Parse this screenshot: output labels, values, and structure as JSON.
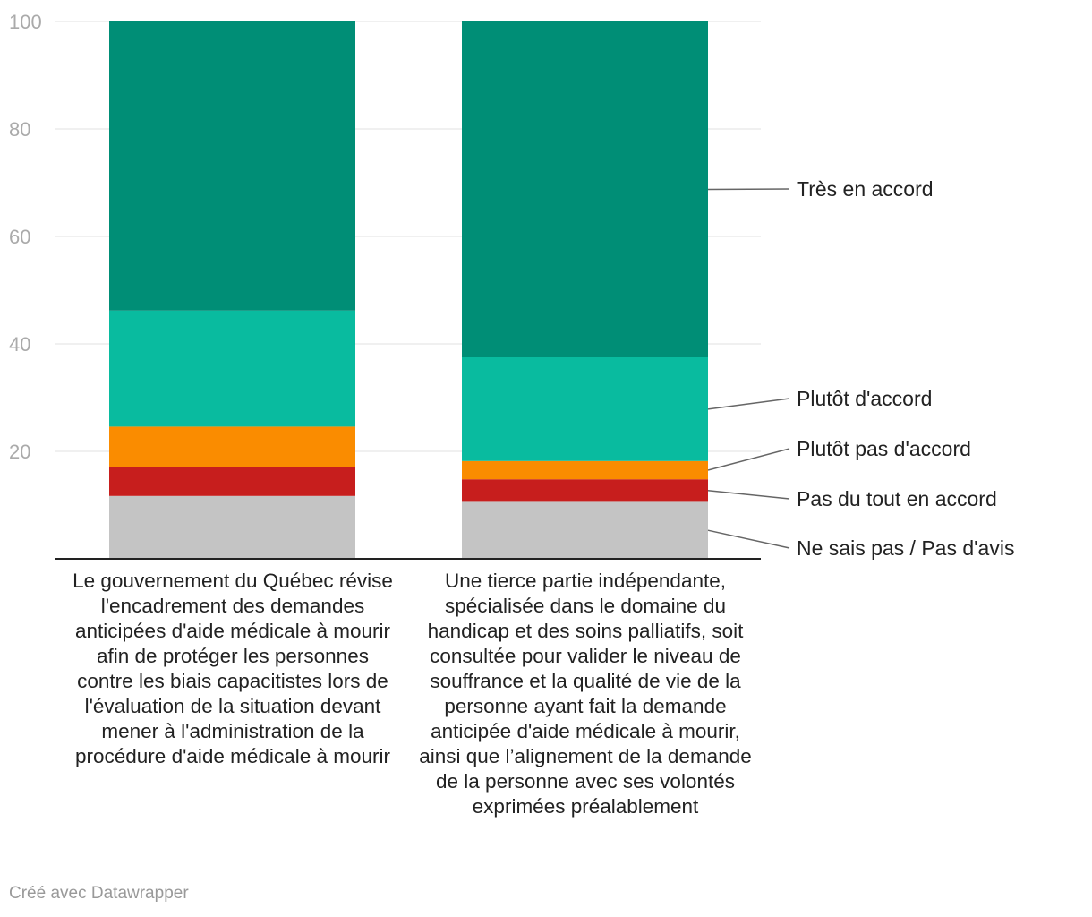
{
  "chart_data": {
    "type": "bar",
    "stacked": true,
    "categories": [
      "Le gouvernement du Québec révise l'encadrement des demandes anticipées d'aide médicale à mourir afin de protéger les personnes contre les biais capacitistes lors de l'évaluation de la situation devant mener à l'administration de la procédure d'aide médicale à mourir",
      "Une tierce partie indépendante, spécialisée dans le domaine du handicap et des soins palliatifs, soit consultée pour valider le niveau de souffrance et la qualité de vie de la personne ayant fait la demande anticipée d'aide médicale à mourir, ainsi que l’alignement de la demande de la personne avec ses volontés exprimées préalablement"
    ],
    "series": [
      {
        "name": "Ne sais pas / Pas d'avis",
        "color": "#c4c4c4",
        "values": [
          11.7,
          10.6
        ]
      },
      {
        "name": "Pas du tout en accord",
        "color": "#c71e1d",
        "values": [
          5.3,
          4.2
        ]
      },
      {
        "name": "Plutôt pas d'accord",
        "color": "#fa8c00",
        "values": [
          7.6,
          3.4
        ]
      },
      {
        "name": "Plutôt d'accord",
        "color": "#09bb9f",
        "values": [
          21.6,
          19.3
        ]
      },
      {
        "name": "Très en accord",
        "color": "#008e76",
        "values": [
          53.8,
          62.5
        ]
      }
    ],
    "ylim": [
      0,
      100
    ],
    "yticks": [
      20,
      40,
      60,
      80,
      100
    ],
    "grid": true,
    "legend": "right, direct labels"
  },
  "footer": {
    "credit": "Créé avec Datawrapper"
  }
}
